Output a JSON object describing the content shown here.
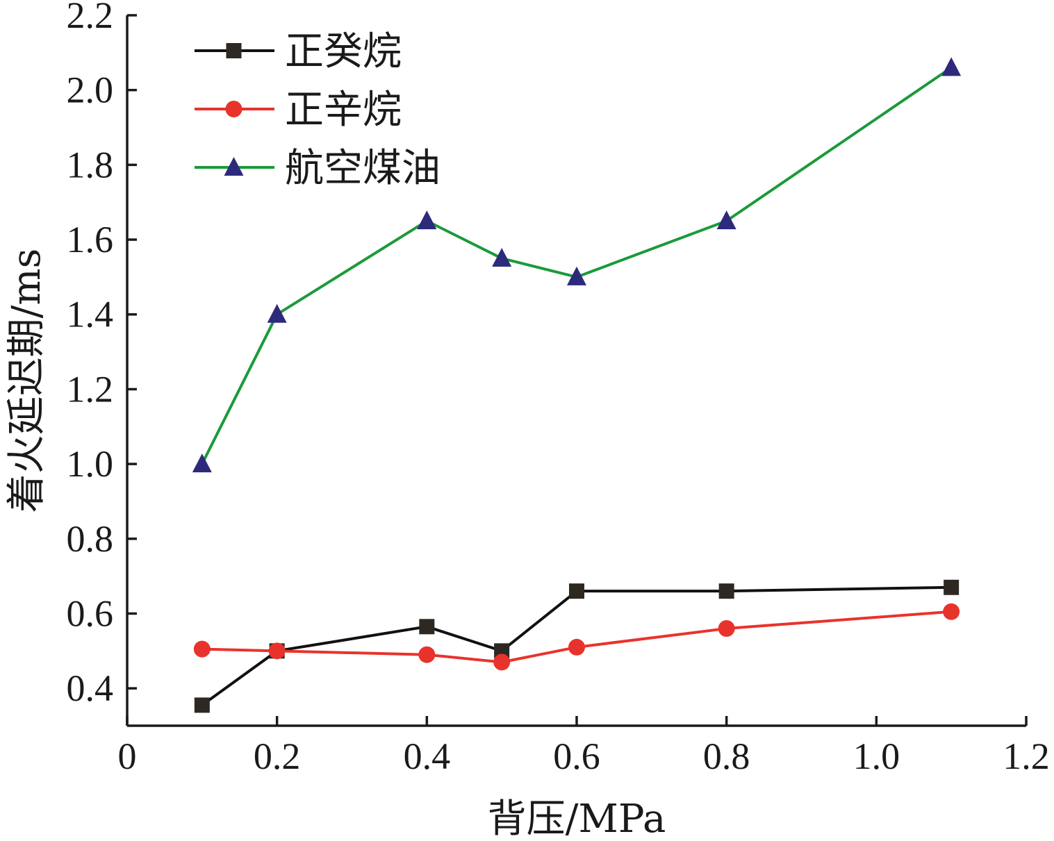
{
  "chart_data": {
    "type": "line",
    "xlabel": "背压/MPa",
    "ylabel": "着火延迟期/ms",
    "xlim": [
      0,
      1.2
    ],
    "ylim": [
      0.3,
      2.2
    ],
    "xticks": [
      {
        "value": 0,
        "label": "0"
      },
      {
        "value": 0.2,
        "label": "0.2"
      },
      {
        "value": 0.4,
        "label": "0.4"
      },
      {
        "value": 0.6,
        "label": "0.6"
      },
      {
        "value": 0.8,
        "label": "0.8"
      },
      {
        "value": 1.0,
        "label": "1.0"
      },
      {
        "value": 1.2,
        "label": "1.2"
      }
    ],
    "yticks": [
      {
        "value": 0.4,
        "label": "0.4"
      },
      {
        "value": 0.6,
        "label": "0.6"
      },
      {
        "value": 0.8,
        "label": "0.8"
      },
      {
        "value": 1.0,
        "label": "1.0"
      },
      {
        "value": 1.2,
        "label": "1.2"
      },
      {
        "value": 1.4,
        "label": "1.4"
      },
      {
        "value": 1.6,
        "label": "1.6"
      },
      {
        "value": 1.8,
        "label": "1.8"
      },
      {
        "value": 2.0,
        "label": "2.0"
      },
      {
        "value": 2.2,
        "label": "2.2"
      }
    ],
    "grid": false,
    "legend_position": "top-left",
    "series": [
      {
        "name": "正癸烷",
        "color": "#111111",
        "marker": "square",
        "marker_color": "#2e2823",
        "x": [
          0.1,
          0.2,
          0.4,
          0.5,
          0.6,
          0.8,
          1.1
        ],
        "y": [
          0.355,
          0.5,
          0.565,
          0.5,
          0.66,
          0.66,
          0.67
        ]
      },
      {
        "name": "正辛烷",
        "color": "#e8332c",
        "marker": "circle",
        "marker_color": "#e8332c",
        "x": [
          0.1,
          0.2,
          0.4,
          0.5,
          0.6,
          0.8,
          1.1
        ],
        "y": [
          0.505,
          0.5,
          0.49,
          0.47,
          0.51,
          0.56,
          0.605
        ]
      },
      {
        "name": "航空煤油",
        "color": "#1b9a3a",
        "marker": "triangle",
        "marker_color": "#2d2a7c",
        "x": [
          0.1,
          0.2,
          0.4,
          0.5,
          0.6,
          0.8,
          1.1
        ],
        "y": [
          1.0,
          1.4,
          1.65,
          1.55,
          1.5,
          1.65,
          2.06
        ]
      }
    ]
  }
}
